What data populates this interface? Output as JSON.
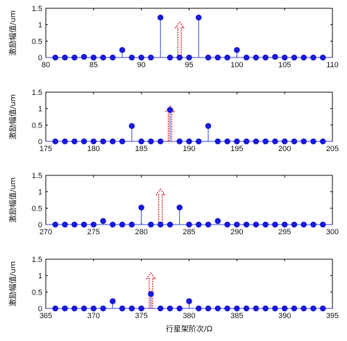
{
  "chart_data": [
    {
      "type": "stem",
      "ylabel": "激励幅值/um",
      "xlabel": "",
      "xlim": [
        80,
        110
      ],
      "ylim": [
        0,
        1.5
      ],
      "xticks": [
        "80",
        "85",
        "90",
        "95",
        "100",
        "105",
        "110"
      ],
      "yticks": [
        "0",
        "0.5",
        "1",
        "1.5"
      ],
      "grid": false,
      "x": [
        81,
        82,
        83,
        84,
        85,
        86,
        87,
        88,
        89,
        90,
        91,
        92,
        93,
        94,
        95,
        96,
        97,
        98,
        99,
        100,
        101,
        102,
        103,
        104,
        105,
        106,
        107,
        108,
        109
      ],
      "y": [
        0,
        0,
        0,
        0.02,
        0,
        0,
        0,
        0.23,
        0,
        0,
        0,
        1.22,
        0,
        0,
        0,
        1.22,
        0,
        0,
        0,
        0.23,
        0,
        0,
        0,
        0.02,
        0,
        0,
        0,
        0,
        0
      ],
      "arrow_at": 94,
      "colors": {
        "stem": "#2f3fe0",
        "marker": "#1a1ad8",
        "arrow": "#d8000f"
      }
    },
    {
      "type": "stem",
      "ylabel": "激励幅值/um",
      "xlabel": "",
      "xlim": [
        175,
        205
      ],
      "ylim": [
        0,
        1.5
      ],
      "xticks": [
        "175",
        "180",
        "185",
        "190",
        "195",
        "200",
        "205"
      ],
      "yticks": [
        "0",
        "0.5",
        "1",
        "1.5"
      ],
      "grid": false,
      "x": [
        176,
        177,
        178,
        179,
        180,
        181,
        182,
        183,
        184,
        185,
        186,
        187,
        188,
        189,
        190,
        191,
        192,
        193,
        194,
        195,
        196,
        197,
        198,
        199,
        200,
        201,
        202,
        203,
        204
      ],
      "y": [
        0,
        0,
        0,
        0,
        0,
        0,
        0,
        0,
        0.47,
        0,
        0,
        0,
        0.96,
        0,
        0,
        0,
        0.47,
        0,
        0,
        0,
        0,
        0,
        0,
        0,
        0,
        0,
        0,
        0,
        0
      ],
      "arrow_at": 188,
      "colors": {
        "stem": "#2f3fe0",
        "marker": "#1a1ad8",
        "arrow": "#d8000f"
      }
    },
    {
      "type": "stem",
      "ylabel": "激励幅值/um",
      "xlabel": "",
      "xlim": [
        270,
        300
      ],
      "ylim": [
        0,
        1.5
      ],
      "xticks": [
        "270",
        "275",
        "280",
        "285",
        "290",
        "295",
        "300"
      ],
      "yticks": [
        "0",
        "0.5",
        "1",
        "1.5"
      ],
      "grid": false,
      "x": [
        271,
        272,
        273,
        274,
        275,
        276,
        277,
        278,
        279,
        280,
        281,
        282,
        283,
        284,
        285,
        286,
        287,
        288,
        289,
        290,
        291,
        292,
        293,
        294,
        295,
        296,
        297,
        298,
        299
      ],
      "y": [
        0,
        0,
        0,
        0,
        0,
        0.11,
        0,
        0,
        0,
        0.52,
        0,
        0,
        0,
        0.52,
        0,
        0,
        0,
        0.11,
        0,
        0,
        0,
        0,
        0,
        0,
        0,
        0,
        0,
        0,
        0
      ],
      "arrow_at": 282,
      "colors": {
        "stem": "#2f3fe0",
        "marker": "#1a1ad8",
        "arrow": "#d8000f"
      }
    },
    {
      "type": "stem",
      "ylabel": "激励幅值/um",
      "xlabel": "行星架阶次/Ω",
      "xlim": [
        365,
        395
      ],
      "ylim": [
        0,
        1.5
      ],
      "xticks": [
        "365",
        "370",
        "375",
        "380",
        "385",
        "390",
        "395"
      ],
      "yticks": [
        "0",
        "0.5",
        "1",
        "1.5"
      ],
      "grid": false,
      "x": [
        366,
        367,
        368,
        369,
        370,
        371,
        372,
        373,
        374,
        375,
        376,
        377,
        378,
        379,
        380,
        381,
        382,
        383,
        384,
        385,
        386,
        387,
        388,
        389,
        390,
        391,
        392,
        393,
        394
      ],
      "y": [
        0,
        0,
        0,
        0,
        0,
        0,
        0.22,
        0,
        0,
        0,
        0.44,
        0,
        0,
        0,
        0.22,
        0,
        0,
        0,
        0,
        0,
        0,
        0,
        0,
        0,
        0,
        0,
        0,
        0,
        0
      ],
      "arrow_at": 376,
      "colors": {
        "stem": "#2f3fe0",
        "marker": "#1a1ad8",
        "arrow": "#d8000f"
      }
    }
  ]
}
